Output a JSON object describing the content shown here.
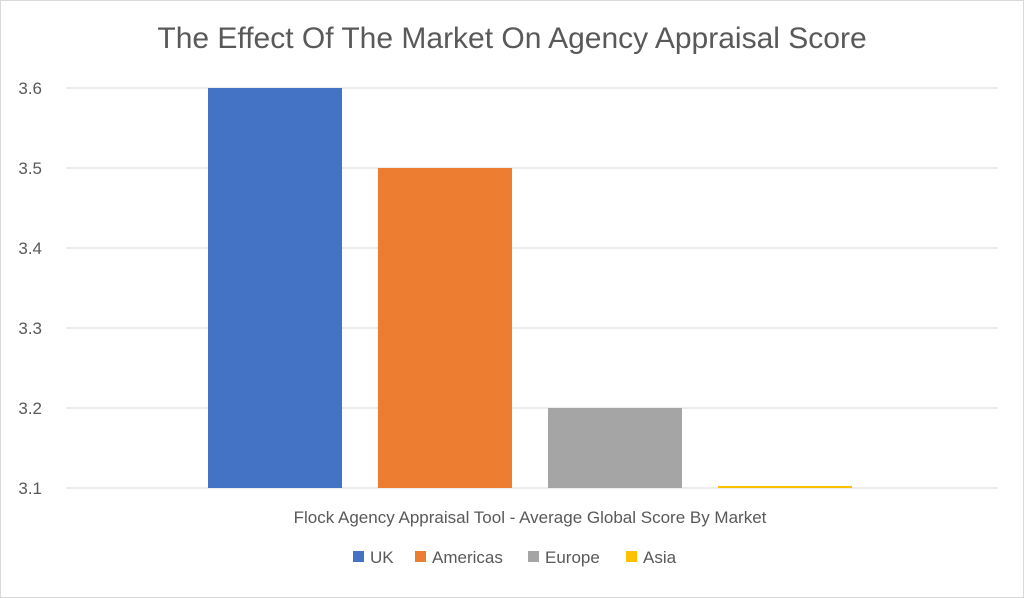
{
  "chart_data": {
    "type": "bar",
    "title": "The Effect Of The Market On Agency Appraisal Score",
    "xlabel": "Flock Agency Appraisal Tool - Average Global Score By Market",
    "ylabel": "",
    "ylim": [
      3.1,
      3.6
    ],
    "yticks": [
      "3.1",
      "3.2",
      "3.3",
      "3.4",
      "3.5",
      "3.6"
    ],
    "grid": true,
    "legend_position": "bottom",
    "series": [
      {
        "name": "UK",
        "values": [
          3.6
        ],
        "color": "#4472c4"
      },
      {
        "name": "Americas",
        "values": [
          3.5
        ],
        "color": "#ed7d31"
      },
      {
        "name": "Europe",
        "values": [
          3.2
        ],
        "color": "#a5a5a5"
      },
      {
        "name": "Asia",
        "values": [
          3.1
        ],
        "color": "#ffc000"
      }
    ]
  }
}
